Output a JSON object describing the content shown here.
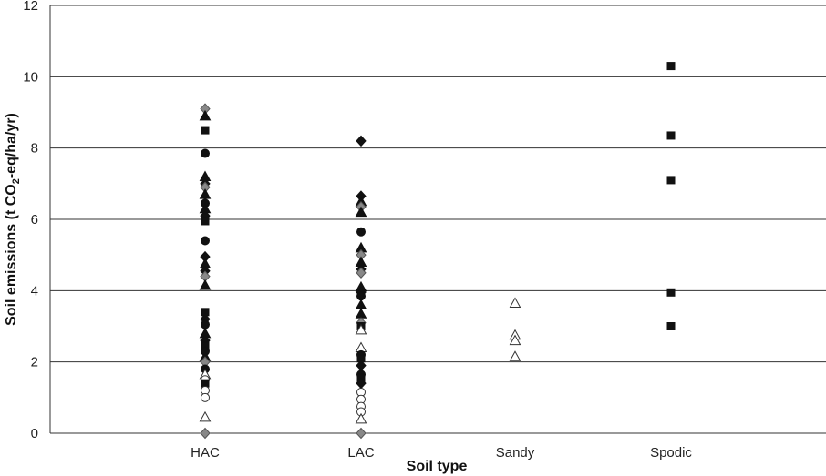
{
  "chart_data": {
    "type": "scatter",
    "xlabel": "Soil type",
    "ylabel": "Soil emissions (t CO2-eq/ha/yr)",
    "ylabel_parts": {
      "pre": "Soil emissions (t CO",
      "sub": "2",
      "post": "-eq/ha/yr)"
    },
    "categories": [
      "HAC",
      "LAC",
      "Sandy",
      "Spodic"
    ],
    "ylim": [
      0,
      12
    ],
    "yticks": [
      "0",
      "2",
      "4",
      "6",
      "8",
      "10",
      "12"
    ],
    "grid": "horizontal",
    "legend": "none",
    "colors": {
      "black": "#111111",
      "gray": "#888888",
      "outline": "#333333"
    },
    "points": [
      {
        "category": "HAC",
        "y": 9.1,
        "marker": "diamond",
        "fill": "gray"
      },
      {
        "category": "HAC",
        "y": 8.9,
        "marker": "triangle",
        "fill": "black"
      },
      {
        "category": "HAC",
        "y": 8.5,
        "marker": "square",
        "fill": "black"
      },
      {
        "category": "HAC",
        "y": 7.85,
        "marker": "circle",
        "fill": "black"
      },
      {
        "category": "HAC",
        "y": 7.2,
        "marker": "triangle",
        "fill": "black"
      },
      {
        "category": "HAC",
        "y": 7.0,
        "marker": "diamond",
        "fill": "black"
      },
      {
        "category": "HAC",
        "y": 6.9,
        "marker": "diamond",
        "fill": "gray"
      },
      {
        "category": "HAC",
        "y": 6.7,
        "marker": "triangle",
        "fill": "black"
      },
      {
        "category": "HAC",
        "y": 6.45,
        "marker": "circle",
        "fill": "black"
      },
      {
        "category": "HAC",
        "y": 6.3,
        "marker": "triangle",
        "fill": "black"
      },
      {
        "category": "HAC",
        "y": 6.1,
        "marker": "diamond",
        "fill": "black"
      },
      {
        "category": "HAC",
        "y": 5.95,
        "marker": "square",
        "fill": "black"
      },
      {
        "category": "HAC",
        "y": 5.4,
        "marker": "circle",
        "fill": "black"
      },
      {
        "category": "HAC",
        "y": 4.95,
        "marker": "diamond",
        "fill": "black"
      },
      {
        "category": "HAC",
        "y": 4.75,
        "marker": "triangle",
        "fill": "black"
      },
      {
        "category": "HAC",
        "y": 4.55,
        "marker": "diamond",
        "fill": "black"
      },
      {
        "category": "HAC",
        "y": 4.4,
        "marker": "diamond",
        "fill": "gray"
      },
      {
        "category": "HAC",
        "y": 4.15,
        "marker": "triangle",
        "fill": "black"
      },
      {
        "category": "HAC",
        "y": 3.4,
        "marker": "square",
        "fill": "black"
      },
      {
        "category": "HAC",
        "y": 3.2,
        "marker": "diamond",
        "fill": "black"
      },
      {
        "category": "HAC",
        "y": 3.05,
        "marker": "circle",
        "fill": "black"
      },
      {
        "category": "HAC",
        "y": 2.8,
        "marker": "triangle",
        "fill": "black"
      },
      {
        "category": "HAC",
        "y": 2.6,
        "marker": "diamond",
        "fill": "black"
      },
      {
        "category": "HAC",
        "y": 2.45,
        "marker": "square",
        "fill": "black"
      },
      {
        "category": "HAC",
        "y": 2.3,
        "marker": "circle",
        "fill": "black"
      },
      {
        "category": "HAC",
        "y": 2.15,
        "marker": "triangle",
        "fill": "black"
      },
      {
        "category": "HAC",
        "y": 2.0,
        "marker": "diamond",
        "fill": "gray"
      },
      {
        "category": "HAC",
        "y": 1.8,
        "marker": "circle",
        "fill": "black"
      },
      {
        "category": "HAC",
        "y": 1.65,
        "marker": "triangle",
        "fill": "white"
      },
      {
        "category": "HAC",
        "y": 1.5,
        "marker": "circle",
        "fill": "white"
      },
      {
        "category": "HAC",
        "y": 1.4,
        "marker": "square",
        "fill": "black"
      },
      {
        "category": "HAC",
        "y": 1.2,
        "marker": "circle",
        "fill": "white"
      },
      {
        "category": "HAC",
        "y": 1.0,
        "marker": "circle",
        "fill": "white"
      },
      {
        "category": "HAC",
        "y": 0.45,
        "marker": "triangle",
        "fill": "white"
      },
      {
        "category": "HAC",
        "y": 0.0,
        "marker": "diamond",
        "fill": "gray"
      },
      {
        "category": "LAC",
        "y": 8.2,
        "marker": "diamond",
        "fill": "black"
      },
      {
        "category": "LAC",
        "y": 6.65,
        "marker": "diamond",
        "fill": "black"
      },
      {
        "category": "LAC",
        "y": 6.5,
        "marker": "triangle",
        "fill": "black"
      },
      {
        "category": "LAC",
        "y": 6.35,
        "marker": "diamond",
        "fill": "gray"
      },
      {
        "category": "LAC",
        "y": 6.2,
        "marker": "triangle",
        "fill": "black"
      },
      {
        "category": "LAC",
        "y": 5.65,
        "marker": "circle",
        "fill": "black"
      },
      {
        "category": "LAC",
        "y": 5.2,
        "marker": "triangle",
        "fill": "black"
      },
      {
        "category": "LAC",
        "y": 5.0,
        "marker": "diamond",
        "fill": "gray"
      },
      {
        "category": "LAC",
        "y": 4.8,
        "marker": "triangle",
        "fill": "black"
      },
      {
        "category": "LAC",
        "y": 4.6,
        "marker": "diamond",
        "fill": "black"
      },
      {
        "category": "LAC",
        "y": 4.5,
        "marker": "diamond",
        "fill": "gray"
      },
      {
        "category": "LAC",
        "y": 4.1,
        "marker": "triangle",
        "fill": "black"
      },
      {
        "category": "LAC",
        "y": 3.95,
        "marker": "diamond",
        "fill": "black"
      },
      {
        "category": "LAC",
        "y": 3.85,
        "marker": "circle",
        "fill": "black"
      },
      {
        "category": "LAC",
        "y": 3.6,
        "marker": "triangle",
        "fill": "black"
      },
      {
        "category": "LAC",
        "y": 3.35,
        "marker": "triangle",
        "fill": "black"
      },
      {
        "category": "LAC",
        "y": 3.1,
        "marker": "diamond",
        "fill": "gray"
      },
      {
        "category": "LAC",
        "y": 3.0,
        "marker": "square",
        "fill": "black"
      },
      {
        "category": "LAC",
        "y": 2.9,
        "marker": "triangle",
        "fill": "white"
      },
      {
        "category": "LAC",
        "y": 2.4,
        "marker": "triangle",
        "fill": "white"
      },
      {
        "category": "LAC",
        "y": 2.2,
        "marker": "circle",
        "fill": "black"
      },
      {
        "category": "LAC",
        "y": 2.1,
        "marker": "square",
        "fill": "black"
      },
      {
        "category": "LAC",
        "y": 1.9,
        "marker": "diamond",
        "fill": "black"
      },
      {
        "category": "LAC",
        "y": 1.65,
        "marker": "circle",
        "fill": "black"
      },
      {
        "category": "LAC",
        "y": 1.55,
        "marker": "square",
        "fill": "black"
      },
      {
        "category": "LAC",
        "y": 1.4,
        "marker": "diamond",
        "fill": "black"
      },
      {
        "category": "LAC",
        "y": 1.15,
        "marker": "circle",
        "fill": "white"
      },
      {
        "category": "LAC",
        "y": 0.95,
        "marker": "circle",
        "fill": "white"
      },
      {
        "category": "LAC",
        "y": 0.75,
        "marker": "circle",
        "fill": "white"
      },
      {
        "category": "LAC",
        "y": 0.6,
        "marker": "circle",
        "fill": "white"
      },
      {
        "category": "LAC",
        "y": 0.4,
        "marker": "triangle",
        "fill": "white"
      },
      {
        "category": "LAC",
        "y": 0.0,
        "marker": "diamond",
        "fill": "gray"
      },
      {
        "category": "Sandy",
        "y": 3.65,
        "marker": "triangle",
        "fill": "white"
      },
      {
        "category": "Sandy",
        "y": 2.75,
        "marker": "triangle",
        "fill": "white"
      },
      {
        "category": "Sandy",
        "y": 2.6,
        "marker": "triangle",
        "fill": "white"
      },
      {
        "category": "Sandy",
        "y": 2.15,
        "marker": "triangle",
        "fill": "white"
      },
      {
        "category": "Spodic",
        "y": 10.3,
        "marker": "square",
        "fill": "black"
      },
      {
        "category": "Spodic",
        "y": 8.35,
        "marker": "square",
        "fill": "black"
      },
      {
        "category": "Spodic",
        "y": 7.1,
        "marker": "square",
        "fill": "black"
      },
      {
        "category": "Spodic",
        "y": 3.95,
        "marker": "square",
        "fill": "black"
      },
      {
        "category": "Spodic",
        "y": 3.0,
        "marker": "square",
        "fill": "black"
      }
    ]
  }
}
